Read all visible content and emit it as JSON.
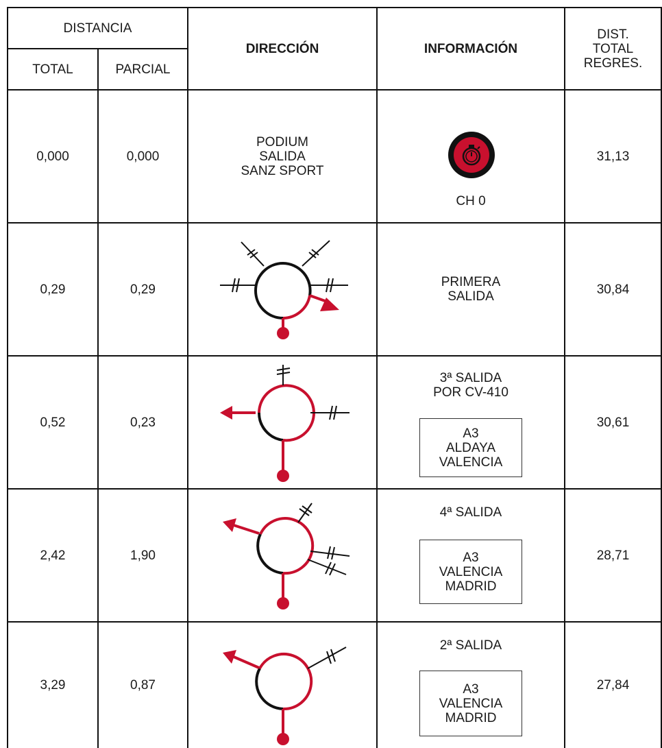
{
  "colors": {
    "red": "#c8102e",
    "black": "#111111"
  },
  "header": {
    "distancia": "DISTANCIA",
    "total": "TOTAL",
    "parcial": "PARCIAL",
    "direccion": "DIRECCIÓN",
    "informacion": "INFORMACIÓN",
    "dist_total_regres": "DIST.\nTOTAL\nREGRES."
  },
  "rows": [
    {
      "total": "0,000",
      "parcial": "0,000",
      "direccion": "PODIUM\nSALIDA\nSANZ SPORT",
      "info": "",
      "icon": "stopwatch-icon",
      "icon_label": "CH 0",
      "sign": "",
      "regres": "31,13"
    },
    {
      "total": "0,29",
      "parcial": "0,29",
      "direccion": "roundabout-first-exit-icon",
      "info": "PRIMERA\nSALIDA",
      "sign": "",
      "regres": "30,84"
    },
    {
      "total": "0,52",
      "parcial": "0,23",
      "direccion": "roundabout-third-exit-icon",
      "info": "3ª SALIDA\nPOR CV-410",
      "sign": "A3\nALDAYA\nVALENCIA",
      "regres": "30,61"
    },
    {
      "total": "2,42",
      "parcial": "1,90",
      "direccion": "roundabout-fourth-exit-icon",
      "info": "4ª SALIDA",
      "sign": "A3\nVALENCIA\nMADRID",
      "regres": "28,71"
    },
    {
      "total": "3,29",
      "parcial": "0,87",
      "direccion": "roundabout-second-exit-icon",
      "info": "2ª SALIDA",
      "sign": "A3\nVALENCIA\nMADRID",
      "regres": "27,84"
    }
  ]
}
